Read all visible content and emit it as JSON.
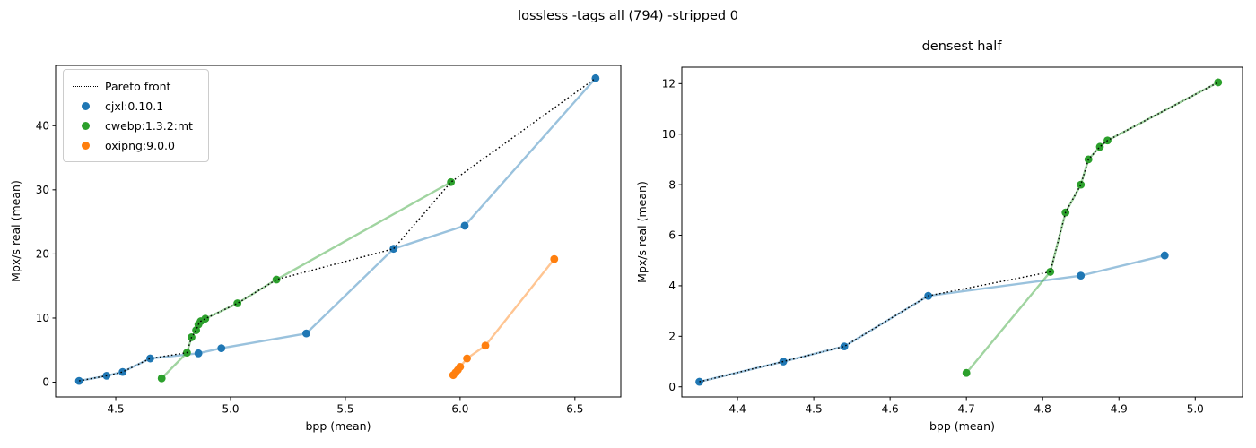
{
  "suptitle": "lossless -tags all (794) -stripped 0",
  "colors": {
    "cjxl": "#1f77b4",
    "cwebp": "#2ca02c",
    "oxipng": "#ff7f0e",
    "pareto": "#000000",
    "spine": "#000000"
  },
  "legend": {
    "entries": [
      {
        "label": "Pareto front",
        "type": "dotted",
        "color": "#000000"
      },
      {
        "label": "cjxl:0.10.1",
        "type": "dot",
        "color": "#1f77b4"
      },
      {
        "label": "cwebp:1.3.2:mt",
        "type": "dot",
        "color": "#2ca02c"
      },
      {
        "label": "oxipng:9.0.0",
        "type": "dot",
        "color": "#ff7f0e"
      }
    ]
  },
  "chart_data": [
    {
      "type": "scatter",
      "title": "",
      "xlabel": "bpp (mean)",
      "ylabel": "Mpx/s real (mean)",
      "xlim": [
        4.238,
        6.7
      ],
      "ylim": [
        -2.3,
        49.4
      ],
      "xticks": [
        4.5,
        5.0,
        5.5,
        6.0,
        6.5
      ],
      "xtick_labels": [
        "4.5",
        "5.0",
        "5.5",
        "6.0",
        "6.5"
      ],
      "yticks": [
        0,
        10,
        20,
        30,
        40
      ],
      "ytick_labels": [
        "0",
        "10",
        "20",
        "30",
        "40"
      ],
      "grid": false,
      "legend_position": "upper left",
      "pareto_front": [
        [
          4.34,
          0.2
        ],
        [
          4.46,
          1.0
        ],
        [
          4.53,
          1.6
        ],
        [
          4.65,
          3.7
        ],
        [
          4.81,
          4.6
        ],
        [
          4.83,
          7.0
        ],
        [
          4.85,
          8.1
        ],
        [
          4.86,
          9.0
        ],
        [
          4.87,
          9.5
        ],
        [
          4.89,
          9.9
        ],
        [
          5.03,
          12.3
        ],
        [
          5.2,
          16.0
        ],
        [
          5.71,
          20.8
        ],
        [
          5.96,
          31.2
        ],
        [
          6.59,
          47.4
        ]
      ],
      "series": [
        {
          "name": "cjxl:0.10.1",
          "color": "#1f77b4",
          "points": [
            [
              4.34,
              0.2
            ],
            [
              4.46,
              1.0
            ],
            [
              4.53,
              1.6
            ],
            [
              4.65,
              3.7
            ],
            [
              4.86,
              4.5
            ],
            [
              4.96,
              5.3
            ],
            [
              5.33,
              7.6
            ],
            [
              5.71,
              20.8
            ],
            [
              6.02,
              24.4
            ],
            [
              6.59,
              47.4
            ]
          ]
        },
        {
          "name": "cwebp:1.3.2:mt",
          "color": "#2ca02c",
          "points": [
            [
              4.7,
              0.6
            ],
            [
              4.81,
              4.6
            ],
            [
              4.83,
              7.0
            ],
            [
              4.85,
              8.1
            ],
            [
              4.86,
              9.0
            ],
            [
              4.87,
              9.5
            ],
            [
              4.89,
              9.9
            ],
            [
              5.03,
              12.3
            ],
            [
              5.2,
              16.0
            ],
            [
              5.96,
              31.2
            ]
          ]
        },
        {
          "name": "oxipng:9.0.0",
          "color": "#ff7f0e",
          "points": [
            [
              5.97,
              1.1
            ],
            [
              5.98,
              1.5
            ],
            [
              5.99,
              1.9
            ],
            [
              6.0,
              2.4
            ],
            [
              6.03,
              3.7
            ],
            [
              6.11,
              5.7
            ],
            [
              6.41,
              19.2
            ]
          ]
        }
      ]
    },
    {
      "type": "scatter",
      "title": "densest half",
      "xlabel": "bpp (mean)",
      "ylabel": "Mpx/s real (mean)",
      "xlim": [
        4.327,
        5.062
      ],
      "ylim": [
        -0.4,
        12.65
      ],
      "xticks": [
        4.4,
        4.5,
        4.6,
        4.7,
        4.8,
        4.9,
        5.0
      ],
      "xtick_labels": [
        "4.4",
        "4.5",
        "4.6",
        "4.7",
        "4.8",
        "4.9",
        "5.0"
      ],
      "yticks": [
        0,
        2,
        4,
        6,
        8,
        10,
        12
      ],
      "ytick_labels": [
        "0",
        "2",
        "4",
        "6",
        "8",
        "10",
        "12"
      ],
      "grid": false,
      "legend_position": "none",
      "pareto_front": [
        [
          4.35,
          0.2
        ],
        [
          4.46,
          1.0
        ],
        [
          4.54,
          1.6
        ],
        [
          4.65,
          3.6
        ],
        [
          4.81,
          4.55
        ],
        [
          4.83,
          6.9
        ],
        [
          4.85,
          8.0
        ],
        [
          4.86,
          9.0
        ],
        [
          4.875,
          9.5
        ],
        [
          4.885,
          9.75
        ],
        [
          5.03,
          12.05
        ]
      ],
      "series": [
        {
          "name": "cjxl:0.10.1",
          "color": "#1f77b4",
          "points": [
            [
              4.35,
              0.2
            ],
            [
              4.46,
              1.0
            ],
            [
              4.54,
              1.6
            ],
            [
              4.65,
              3.6
            ],
            [
              4.85,
              4.4
            ],
            [
              4.96,
              5.2
            ]
          ]
        },
        {
          "name": "cwebp:1.3.2:mt",
          "color": "#2ca02c",
          "points": [
            [
              4.7,
              0.55
            ],
            [
              4.81,
              4.55
            ],
            [
              4.83,
              6.9
            ],
            [
              4.85,
              8.0
            ],
            [
              4.86,
              9.0
            ],
            [
              4.875,
              9.5
            ],
            [
              4.885,
              9.75
            ],
            [
              5.03,
              12.05
            ]
          ]
        }
      ]
    }
  ]
}
